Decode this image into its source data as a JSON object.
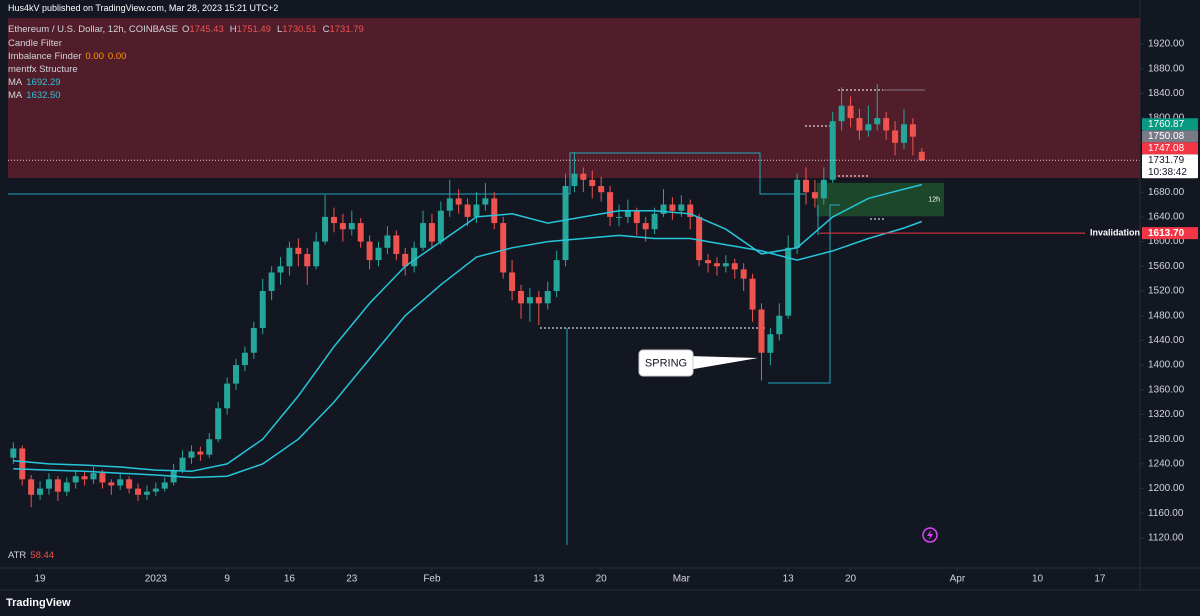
{
  "header": {
    "published": "Hus4kV published on TradingView.com, Mar 28, 2023 15:21 UTC+2",
    "symbol": "Ethereum / U.S. Dollar, 12h, COINBASE",
    "ohlc": [
      {
        "label": "O",
        "value": 1745.43
      },
      {
        "label": "H",
        "value": 1751.49
      },
      {
        "label": "L",
        "value": 1730.51
      },
      {
        "label": "C",
        "value": 1731.79
      }
    ],
    "indicators": [
      "Candle Filter",
      "Imbalance Finder",
      "mentfx Structure"
    ],
    "imbalance_values": [
      {
        "value": 0,
        "label": "0.00"
      },
      {
        "value": 0,
        "label": "0.00"
      }
    ],
    "atr": {
      "name": "ATR",
      "value": 58.44
    }
  },
  "annotations": {
    "spring": "SPRING"
  },
  "footer": {
    "brand": "TradingView"
  },
  "chart_data": {
    "type": "candlestick",
    "x": [
      -3,
      -2,
      -1,
      0,
      1,
      2,
      3,
      4,
      5,
      6,
      7,
      8,
      9,
      10,
      11,
      12,
      13,
      14,
      15,
      16,
      17,
      18,
      19,
      20,
      21,
      22,
      23,
      24,
      25,
      26,
      27,
      28,
      29,
      30,
      31,
      32,
      33,
      34,
      35,
      36,
      37,
      38,
      39,
      40,
      41,
      42,
      43,
      44,
      45,
      46,
      47,
      48,
      49,
      50,
      51,
      52,
      53,
      54,
      55,
      56,
      57,
      58,
      59,
      60,
      61,
      62,
      63,
      64,
      65,
      66,
      67,
      68,
      69,
      70,
      71,
      72,
      73,
      74,
      75,
      76,
      77,
      78,
      79,
      80,
      81,
      82,
      83,
      84,
      85,
      86,
      87,
      88,
      89,
      90,
      91,
      92,
      93,
      94,
      95,
      96,
      97,
      98,
      99
    ],
    "ohlc": [
      [
        1250,
        1275,
        1240,
        1265
      ],
      [
        1265,
        1270,
        1205,
        1215
      ],
      [
        1215,
        1222,
        1170,
        1190
      ],
      [
        1190,
        1212,
        1182,
        1200
      ],
      [
        1200,
        1225,
        1190,
        1215
      ],
      [
        1215,
        1220,
        1180,
        1195
      ],
      [
        1195,
        1218,
        1188,
        1210
      ],
      [
        1210,
        1230,
        1200,
        1220
      ],
      [
        1220,
        1228,
        1205,
        1215
      ],
      [
        1215,
        1235,
        1208,
        1225
      ],
      [
        1225,
        1230,
        1200,
        1210
      ],
      [
        1210,
        1215,
        1190,
        1205
      ],
      [
        1205,
        1225,
        1198,
        1215
      ],
      [
        1215,
        1220,
        1192,
        1200
      ],
      [
        1200,
        1208,
        1180,
        1190
      ],
      [
        1190,
        1205,
        1182,
        1195
      ],
      [
        1195,
        1210,
        1188,
        1200
      ],
      [
        1200,
        1218,
        1195,
        1210
      ],
      [
        1210,
        1240,
        1205,
        1230
      ],
      [
        1230,
        1262,
        1225,
        1250
      ],
      [
        1250,
        1270,
        1240,
        1260
      ],
      [
        1260,
        1268,
        1245,
        1255
      ],
      [
        1255,
        1290,
        1250,
        1280
      ],
      [
        1280,
        1340,
        1275,
        1330
      ],
      [
        1330,
        1380,
        1320,
        1370
      ],
      [
        1370,
        1410,
        1360,
        1400
      ],
      [
        1400,
        1430,
        1390,
        1420
      ],
      [
        1420,
        1470,
        1410,
        1460
      ],
      [
        1460,
        1540,
        1450,
        1520
      ],
      [
        1520,
        1560,
        1505,
        1550
      ],
      [
        1550,
        1575,
        1530,
        1560
      ],
      [
        1560,
        1600,
        1545,
        1590
      ],
      [
        1590,
        1605,
        1560,
        1580
      ],
      [
        1580,
        1590,
        1530,
        1560
      ],
      [
        1560,
        1615,
        1555,
        1600
      ],
      [
        1600,
        1675,
        1595,
        1640
      ],
      [
        1640,
        1655,
        1615,
        1630
      ],
      [
        1630,
        1645,
        1600,
        1620
      ],
      [
        1620,
        1650,
        1610,
        1630
      ],
      [
        1630,
        1638,
        1590,
        1600
      ],
      [
        1600,
        1610,
        1555,
        1570
      ],
      [
        1570,
        1600,
        1560,
        1590
      ],
      [
        1590,
        1625,
        1580,
        1610
      ],
      [
        1610,
        1618,
        1570,
        1580
      ],
      [
        1580,
        1590,
        1545,
        1560
      ],
      [
        1560,
        1600,
        1550,
        1590
      ],
      [
        1590,
        1650,
        1585,
        1630
      ],
      [
        1630,
        1645,
        1590,
        1600
      ],
      [
        1600,
        1665,
        1595,
        1650
      ],
      [
        1650,
        1700,
        1640,
        1670
      ],
      [
        1670,
        1685,
        1645,
        1660
      ],
      [
        1660,
        1670,
        1625,
        1640
      ],
      [
        1640,
        1680,
        1630,
        1660
      ],
      [
        1660,
        1695,
        1650,
        1670
      ],
      [
        1670,
        1680,
        1620,
        1630
      ],
      [
        1630,
        1640,
        1540,
        1550
      ],
      [
        1550,
        1570,
        1505,
        1520
      ],
      [
        1520,
        1530,
        1475,
        1500
      ],
      [
        1500,
        1525,
        1470,
        1510
      ],
      [
        1510,
        1520,
        1465,
        1500
      ],
      [
        1500,
        1535,
        1490,
        1520
      ],
      [
        1520,
        1585,
        1510,
        1570
      ],
      [
        1570,
        1710,
        1560,
        1690
      ],
      [
        1690,
        1745,
        1680,
        1710
      ],
      [
        1710,
        1720,
        1680,
        1700
      ],
      [
        1700,
        1715,
        1670,
        1690
      ],
      [
        1690,
        1705,
        1665,
        1680
      ],
      [
        1680,
        1690,
        1625,
        1640
      ],
      [
        1640,
        1660,
        1625,
        1640
      ],
      [
        1640,
        1668,
        1630,
        1650
      ],
      [
        1650,
        1655,
        1610,
        1630
      ],
      [
        1630,
        1640,
        1600,
        1620
      ],
      [
        1620,
        1655,
        1612,
        1645
      ],
      [
        1645,
        1685,
        1640,
        1660
      ],
      [
        1660,
        1672,
        1635,
        1650
      ],
      [
        1650,
        1675,
        1640,
        1660
      ],
      [
        1660,
        1668,
        1620,
        1640
      ],
      [
        1640,
        1645,
        1560,
        1570
      ],
      [
        1570,
        1580,
        1550,
        1565
      ],
      [
        1565,
        1575,
        1545,
        1560
      ],
      [
        1560,
        1578,
        1550,
        1565
      ],
      [
        1565,
        1572,
        1540,
        1555
      ],
      [
        1555,
        1565,
        1520,
        1540
      ],
      [
        1540,
        1548,
        1470,
        1490
      ],
      [
        1490,
        1500,
        1375,
        1420
      ],
      [
        1420,
        1460,
        1400,
        1450
      ],
      [
        1450,
        1500,
        1440,
        1480
      ],
      [
        1480,
        1610,
        1475,
        1590
      ],
      [
        1590,
        1710,
        1580,
        1700
      ],
      [
        1700,
        1720,
        1660,
        1680
      ],
      [
        1680,
        1700,
        1655,
        1670
      ],
      [
        1670,
        1720,
        1660,
        1700
      ],
      [
        1700,
        1810,
        1695,
        1795
      ],
      [
        1795,
        1850,
        1780,
        1820
      ],
      [
        1820,
        1835,
        1785,
        1800
      ],
      [
        1800,
        1815,
        1765,
        1780
      ],
      [
        1780,
        1820,
        1770,
        1790
      ],
      [
        1790,
        1855,
        1780,
        1800
      ],
      [
        1800,
        1810,
        1765,
        1780
      ],
      [
        1780,
        1795,
        1740,
        1760
      ],
      [
        1760,
        1815,
        1750,
        1790
      ],
      [
        1790,
        1800,
        1740,
        1770
      ],
      [
        1745.43,
        1751.49,
        1730.51,
        1731.79
      ]
    ],
    "up_color": "#26a69a",
    "down_color": "#ef5350",
    "moving_averages": [
      {
        "name": "MA",
        "color": "#26c6da",
        "last": 1692.29,
        "x": [
          -3,
          1,
          5,
          9,
          13,
          17,
          21,
          25,
          29,
          33,
          37,
          41,
          45,
          49,
          53,
          57,
          61,
          65,
          69,
          73,
          77,
          81,
          85,
          89,
          93,
          97,
          99
        ],
        "values": [
          1245,
          1240,
          1238,
          1235,
          1230,
          1228,
          1240,
          1280,
          1350,
          1430,
          1500,
          1560,
          1600,
          1640,
          1645,
          1630,
          1640,
          1650,
          1650,
          1645,
          1620,
          1580,
          1590,
          1640,
          1670,
          1685,
          1692.29
        ]
      },
      {
        "name": "MA",
        "color": "#26c6da",
        "last": {
          "value": 1632.5,
          "label": "1632.50"
        },
        "x": [
          -3,
          1,
          5,
          9,
          13,
          17,
          21,
          25,
          29,
          33,
          37,
          41,
          45,
          49,
          53,
          57,
          61,
          65,
          69,
          73,
          77,
          81,
          85,
          89,
          93,
          97,
          99
        ],
        "values": [
          1232,
          1230,
          1228,
          1225,
          1222,
          1218,
          1220,
          1240,
          1280,
          1340,
          1410,
          1480,
          1530,
          1575,
          1590,
          1600,
          1605,
          1610,
          1605,
          1605,
          1595,
          1585,
          1570,
          1585,
          1605,
          1622,
          1632.5
        ]
      }
    ],
    "zones": [
      {
        "low": 1703,
        "high": 1962,
        "color": "#5e1f2c"
      },
      {
        "low": 1641,
        "high": 1695,
        "x": [
          87.2,
          101.5
        ],
        "color": "#1e4d2b",
        "label": "12h"
      }
    ],
    "invalidation": {
      "value": 1613.7,
      "text": "Invalidation",
      "from_x": 87.5
    },
    "price_tags": [
      {
        "value": 1731.79,
        "color": "#ffffff",
        "text_color": "#131722",
        "countdown": "10:38:42"
      },
      {
        "value": 1747.08,
        "color": "#f23645",
        "text_color": "#ffffff"
      },
      {
        "value": 1750.08,
        "color": "#787b86",
        "text_color": "#ffffff"
      },
      {
        "value": 1760.87,
        "color": "#089981",
        "text_color": "#ffffff"
      }
    ],
    "invalidation_tag": {
      "value": 1613.7,
      "label": "1613.70",
      "color": "#f23645"
    },
    "xlim": [
      -3.6,
      123.5
    ],
    "ylim": [
      1071.4,
      1962.1
    ],
    "xticks": [
      {
        "value": 0,
        "label": "19"
      },
      {
        "value": 13,
        "label": "2023"
      },
      {
        "value": 21,
        "label": "9"
      },
      {
        "value": 28,
        "label": "16"
      },
      {
        "value": 35,
        "label": "23"
      },
      {
        "value": 44,
        "label": "Feb"
      },
      {
        "value": 56,
        "label": "13"
      },
      {
        "value": 63,
        "label": "20"
      },
      {
        "value": 72,
        "label": "Mar"
      },
      {
        "value": 84,
        "label": "13"
      },
      {
        "value": 91,
        "label": "20"
      },
      {
        "value": 103,
        "label": "Apr"
      },
      {
        "value": 112,
        "label": "10"
      },
      {
        "value": 119,
        "label": "17"
      }
    ],
    "yticks": [
      {
        "value": 1120,
        "label": "1120.00"
      },
      {
        "value": 1160,
        "label": "1160.00"
      },
      {
        "value": 1200,
        "label": "1200.00"
      },
      {
        "value": 1240,
        "label": "1240.00"
      },
      {
        "value": 1280,
        "label": "1280.00"
      },
      {
        "value": 1320,
        "label": "1320.00"
      },
      {
        "value": 1360,
        "label": "1360.00"
      },
      {
        "value": 1400,
        "label": "1400.00"
      },
      {
        "value": 1440,
        "label": "1440.00"
      },
      {
        "value": 1480,
        "label": "1480.00"
      },
      {
        "value": 1520,
        "label": "1520.00"
      },
      {
        "value": 1560,
        "label": "1560.00"
      },
      {
        "value": 1600,
        "label": "1600.00"
      },
      {
        "value": 1640,
        "label": "1640.00"
      },
      {
        "value": 1680,
        "label": "1680.00"
      },
      {
        "value": 1720,
        "label": "1720.00"
      },
      {
        "value": 1760,
        "label": "1760.00"
      },
      {
        "value": 1800,
        "label": "1800.00"
      },
      {
        "value": 1840,
        "label": "1840.00"
      },
      {
        "value": 1880,
        "label": "1880.00"
      },
      {
        "value": 1920,
        "label": "1920.00"
      }
    ],
    "grid": false
  }
}
